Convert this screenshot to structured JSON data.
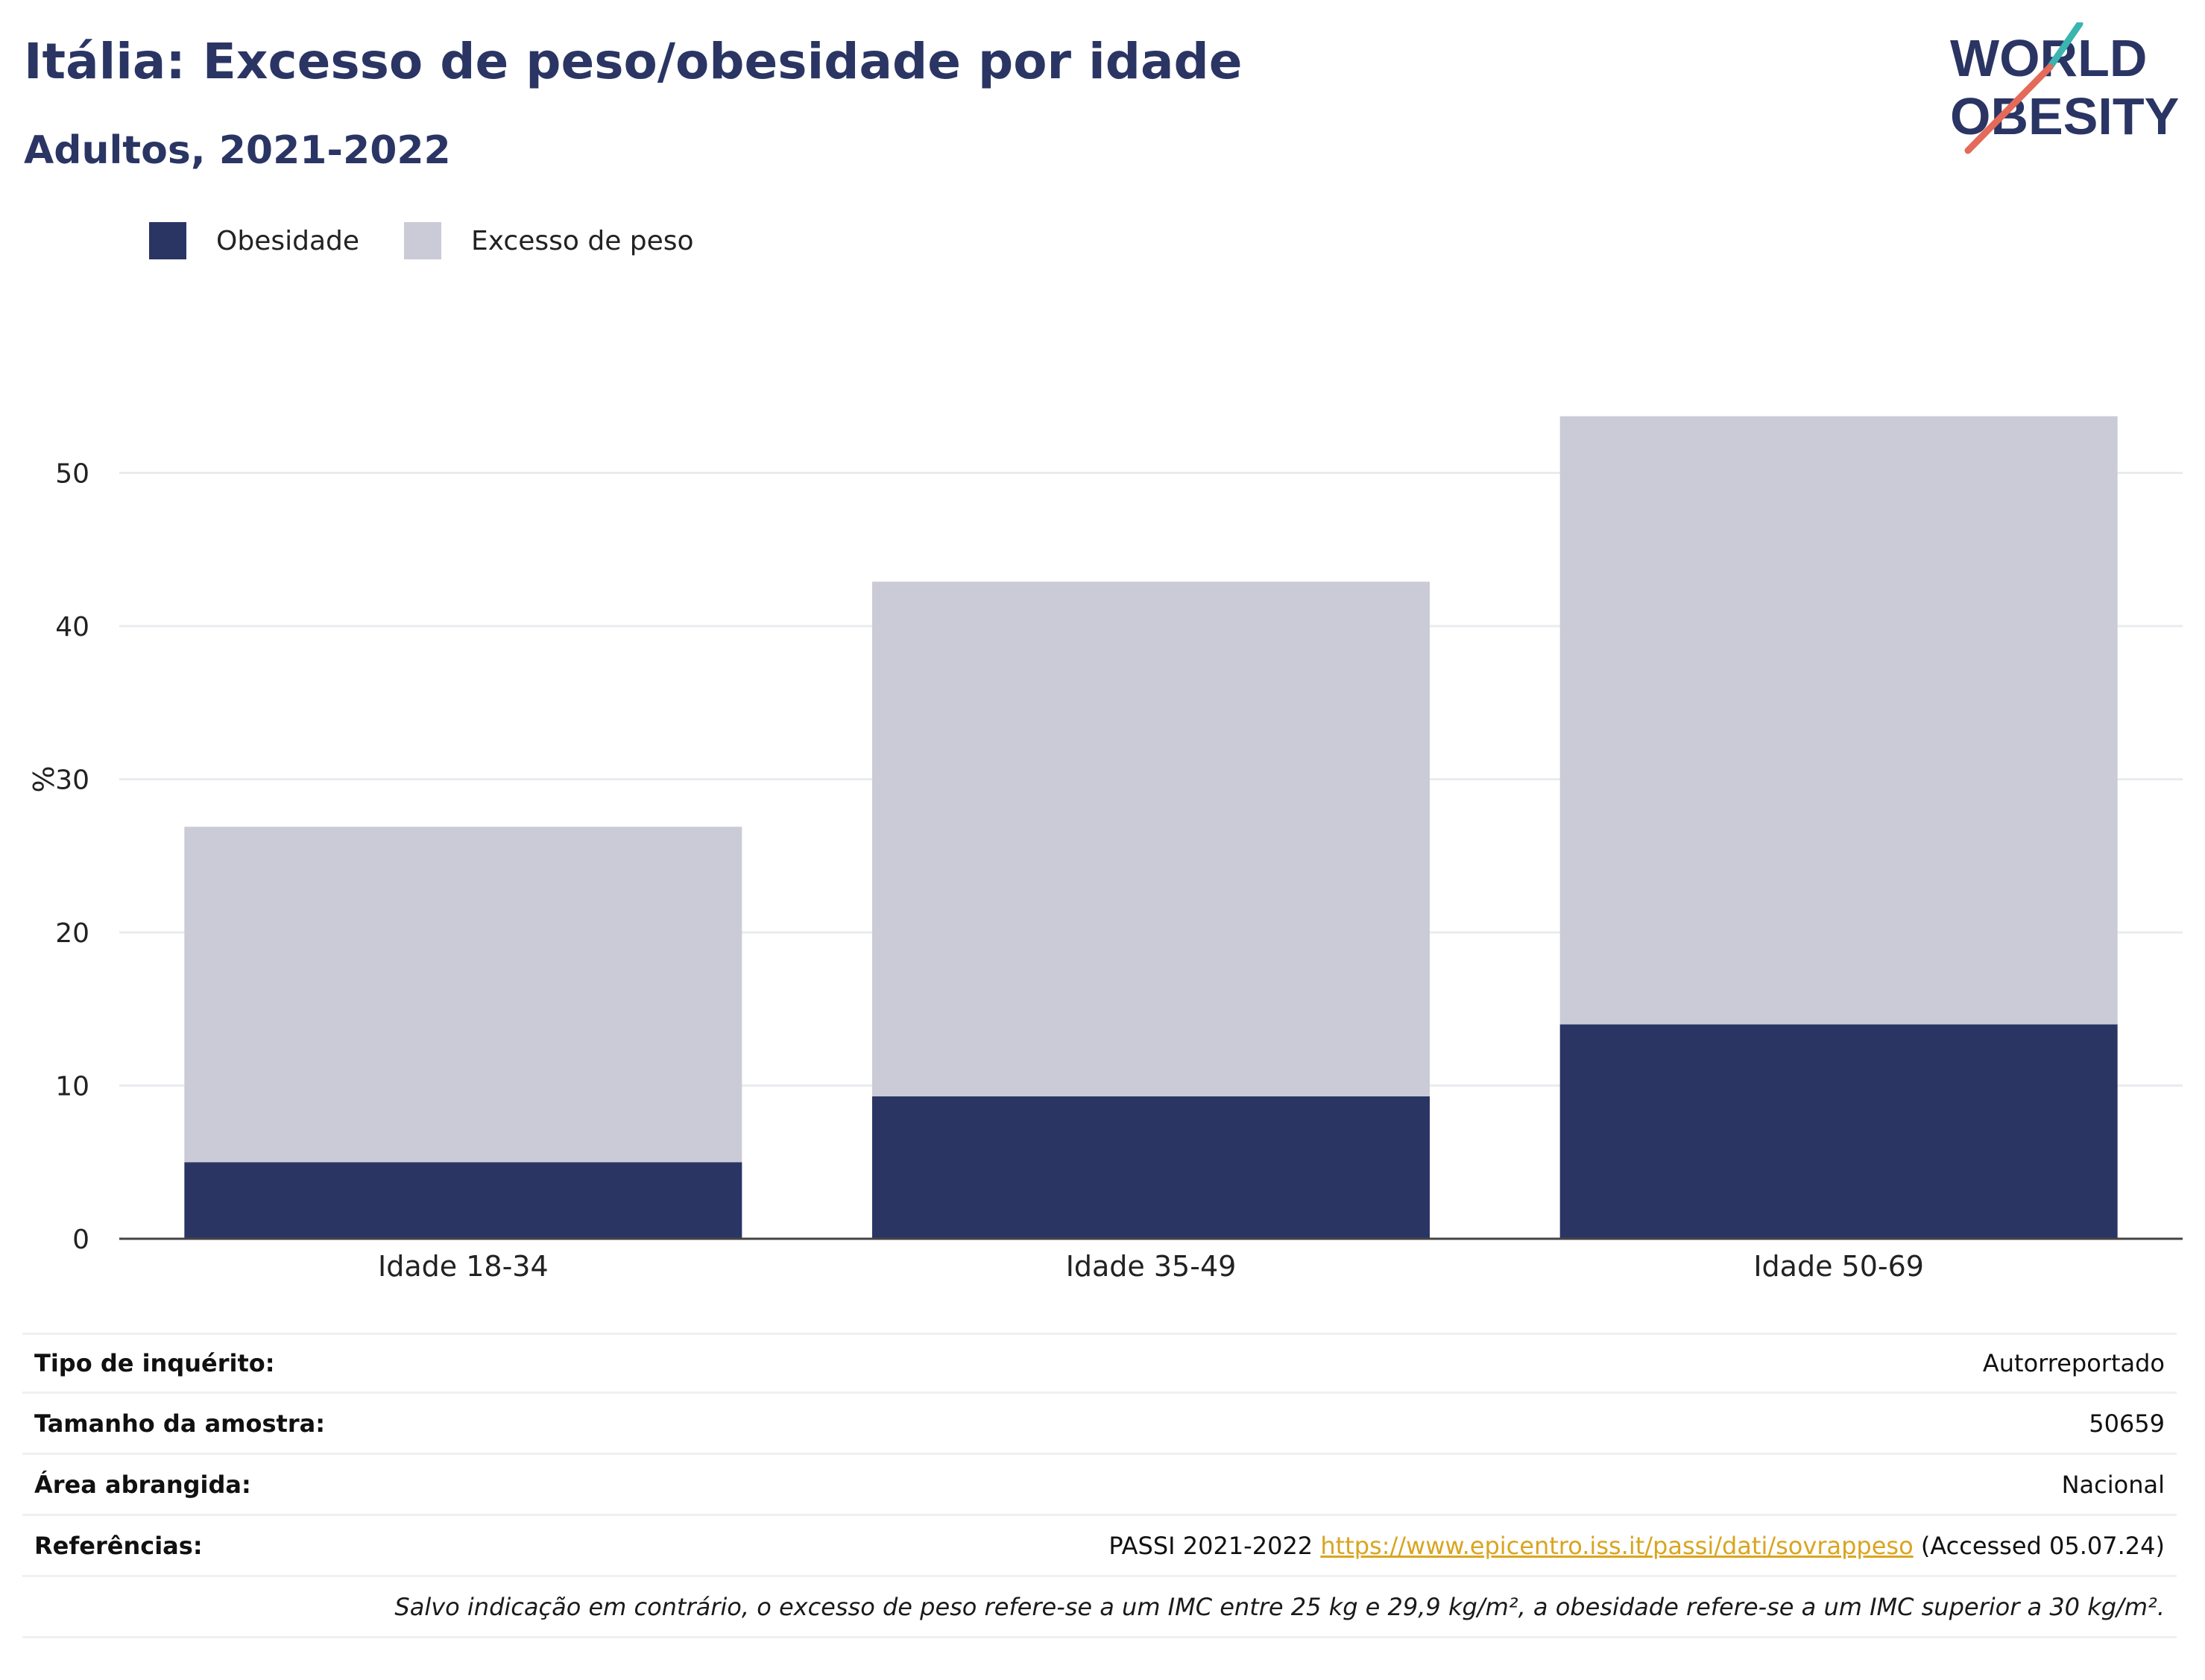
{
  "title": "Itália: Excesso de peso/obesidade por idade",
  "subtitle": "Adultos, 2021-2022",
  "logo": {
    "line1": "WORLD",
    "line2": "OBESITY",
    "accent_teal": "#3ab5b0",
    "accent_coral": "#e46a5a",
    "text_color": "#2a3564"
  },
  "legend": [
    {
      "label": "Obesidade",
      "color": "#2a3564"
    },
    {
      "label": "Excesso de peso",
      "color": "#cacbd7"
    }
  ],
  "chart_data": {
    "type": "bar",
    "stacked": true,
    "categories": [
      "Idade 18-34",
      "Idade 35-49",
      "Idade 50-69"
    ],
    "series": [
      {
        "name": "Obesidade",
        "values": [
          5.0,
          9.3,
          14.0
        ],
        "color": "#2a3564"
      },
      {
        "name": "Excesso de peso",
        "values": [
          21.9,
          33.6,
          39.7
        ],
        "color": "#cacbd7"
      }
    ],
    "ylabel": "%",
    "ylim": [
      0,
      60
    ],
    "yticks": [
      0,
      10,
      20,
      30,
      40,
      50
    ],
    "grid": true,
    "legend_position": "top-left"
  },
  "info": {
    "survey_type_label": "Tipo de inquérito:",
    "survey_type_value": "Autorreportado",
    "sample_size_label": "Tamanho da amostra:",
    "sample_size_value": "50659",
    "area_label": "Área abrangida:",
    "area_value": "Nacional",
    "references_label": "Referências:",
    "references_prefix": "PASSI 2021-2022",
    "references_link": "https://www.epicentro.iss.it/passi/dati/sovrappeso",
    "references_suffix": "(Accessed 05.07.24)",
    "note": "Salvo indicação em contrário, o excesso de peso refere-se a um IMC entre 25 kg e 29,9 kg/m², a obesidade refere-se a um IMC superior a 30 kg/m²."
  }
}
